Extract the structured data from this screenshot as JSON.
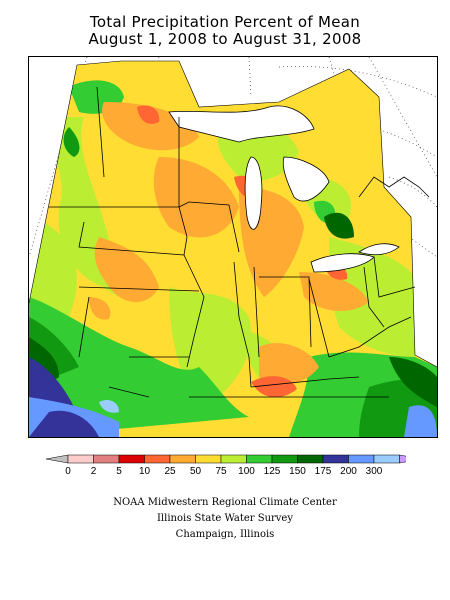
{
  "title_line1": "Total Precipitation Percent of Mean",
  "title_line2": "August 1, 2008 to August 31, 2008",
  "legend": {
    "ticks": [
      "0",
      "2",
      "5",
      "10",
      "25",
      "50",
      "75",
      "100",
      "125",
      "150",
      "175",
      "200",
      "300"
    ],
    "colors": [
      "#c0c0c0",
      "#ffcccc",
      "#e08080",
      "#dd0000",
      "#ff6633",
      "#ffaa33",
      "#ffdd33",
      "#bbee33",
      "#33cc33",
      "#119911",
      "#006600",
      "#333399",
      "#6699ff",
      "#99ccff",
      "#cc99ff"
    ]
  },
  "credits": {
    "line1": "NOAA Midwestern Regional Climate Center",
    "line2": "Illinois State Water Survey",
    "line3": "Champaign, Illinois"
  }
}
